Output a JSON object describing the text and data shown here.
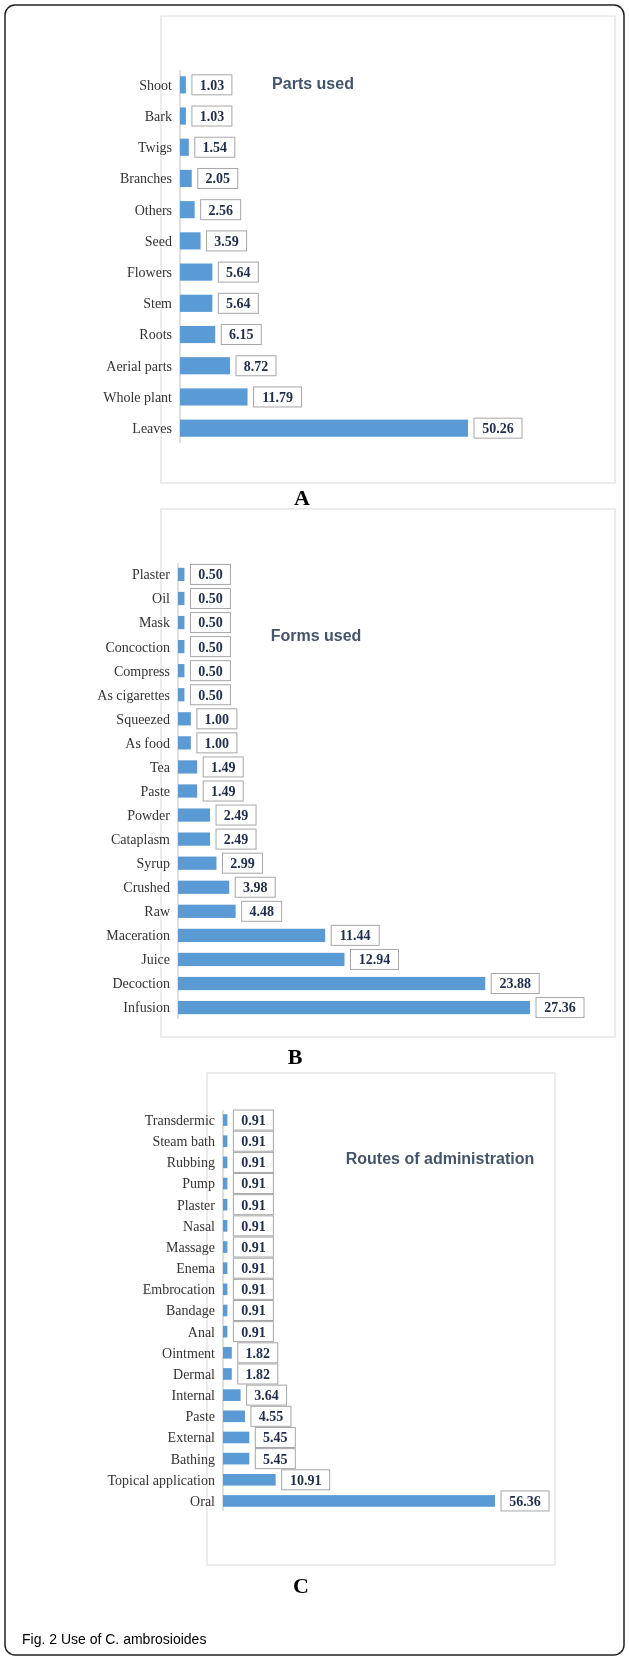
{
  "chart_data": [
    {
      "type": "bar",
      "orientation": "horizontal",
      "title": "Parts used",
      "color": "#5b9bd5",
      "annotations": [
        "A"
      ],
      "categories": [
        "Shoot",
        "Bark",
        "Twigs",
        "Branches",
        "Others",
        "Seed",
        "Flowers",
        "Stem",
        "Roots",
        "Aerial parts",
        "Whole plant",
        "Leaves"
      ],
      "values": [
        1.03,
        1.03,
        1.54,
        2.05,
        2.56,
        3.59,
        5.64,
        5.64,
        6.15,
        8.72,
        11.79,
        50.26
      ],
      "value_labels": [
        "1.03",
        "1.03",
        "1.54",
        "2.05",
        "2.56",
        "3.59",
        "5.64",
        "5.64",
        "6.15",
        "8.72",
        "11.79",
        "50.26"
      ]
    },
    {
      "type": "bar",
      "orientation": "horizontal",
      "title": "Forms used",
      "color": "#5b9bd5",
      "annotations": [
        "B"
      ],
      "categories": [
        "Plaster",
        "Oil",
        "Mask",
        "Concoction",
        "Compress",
        "As cigarettes",
        "Squeezed",
        "As food",
        "Tea",
        "Paste",
        "Powder",
        "Cataplasm",
        "Syrup",
        "Crushed",
        "Raw",
        "Maceration",
        "Juice",
        "Decoction",
        "Infusion"
      ],
      "values": [
        0.5,
        0.5,
        0.5,
        0.5,
        0.5,
        0.5,
        1.0,
        1.0,
        1.49,
        1.49,
        2.49,
        2.49,
        2.99,
        3.98,
        4.48,
        11.44,
        12.94,
        23.88,
        27.36
      ],
      "value_labels": [
        "0.50",
        "0.50",
        "0.50",
        "0.50",
        "0.50",
        "0.50",
        "1.00",
        "1.00",
        "1.49",
        "1.49",
        "2.49",
        "2.49",
        "2.99",
        "3.98",
        "4.48",
        "11.44",
        "12.94",
        "23.88",
        "27.36"
      ]
    },
    {
      "type": "bar",
      "orientation": "horizontal",
      "title": "Routes of administration",
      "color": "#5b9bd5",
      "annotations": [
        "C",
        "Fig. 2 Use of C. ambrosioides"
      ],
      "categories": [
        "Transdermic",
        "Steam bath",
        "Rubbing",
        "Pump",
        "Plaster",
        "Nasal",
        "Massage",
        "Enema",
        "Embrocation",
        "Bandage",
        "Anal",
        "Ointment",
        "Dermal",
        "Internal",
        "Paste",
        "External",
        "Bathing",
        "Topical application",
        "Oral"
      ],
      "values": [
        0.91,
        0.91,
        0.91,
        0.91,
        0.91,
        0.91,
        0.91,
        0.91,
        0.91,
        0.91,
        0.91,
        1.82,
        1.82,
        3.64,
        4.55,
        5.45,
        5.45,
        10.91,
        56.36
      ],
      "value_labels": [
        "0.91",
        "0.91",
        "0.91",
        "0.91",
        "0.91",
        "0.91",
        "0.91",
        "0.91",
        "0.91",
        "0.91",
        "0.91",
        "1.82",
        "1.82",
        "3.64",
        "4.55",
        "5.45",
        "5.45",
        "10.91",
        "56.36"
      ]
    }
  ]
}
